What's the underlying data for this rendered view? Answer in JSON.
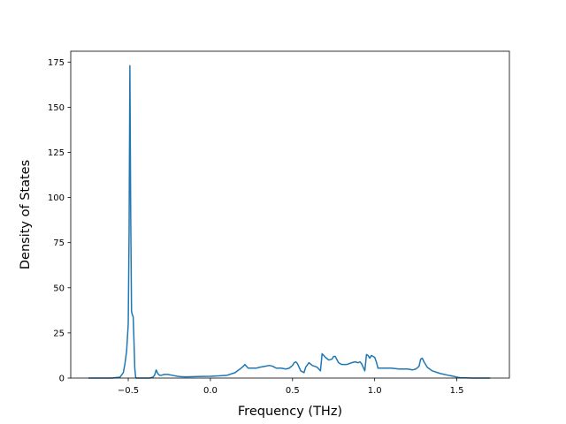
{
  "chart_data": {
    "type": "line",
    "title": "",
    "xlabel": "Frequency (THz)",
    "ylabel": "Density of States",
    "xlim": [
      -0.85,
      1.82
    ],
    "ylim": [
      0,
      181
    ],
    "x_ticks": [
      -0.5,
      0.0,
      0.5,
      1.0,
      1.5
    ],
    "x_tick_labels": [
      "−0.5",
      "0.0",
      "0.5",
      "1.0",
      "1.5"
    ],
    "y_ticks": [
      0,
      25,
      50,
      75,
      100,
      125,
      150,
      175
    ],
    "y_tick_labels": [
      "0",
      "25",
      "50",
      "75",
      "100",
      "125",
      "150",
      "175"
    ],
    "grid": false,
    "legend": "none",
    "series": [
      {
        "color": "#1f77b4",
        "x": [
          -0.74,
          -0.6,
          -0.55,
          -0.53,
          -0.52,
          -0.51,
          -0.5,
          -0.495,
          -0.49,
          -0.485,
          -0.48,
          -0.475,
          -0.47,
          -0.465,
          -0.46,
          -0.455,
          -0.45,
          -0.445,
          -0.44,
          -0.43,
          -0.4,
          -0.37,
          -0.35,
          -0.34,
          -0.33,
          -0.32,
          -0.31,
          -0.3,
          -0.28,
          -0.26,
          -0.23,
          -0.2,
          -0.18,
          -0.15,
          -0.1,
          -0.05,
          0.0,
          0.05,
          0.1,
          0.15,
          0.18,
          0.2,
          0.21,
          0.22,
          0.23,
          0.25,
          0.28,
          0.3,
          0.33,
          0.36,
          0.38,
          0.4,
          0.43,
          0.46,
          0.48,
          0.5,
          0.51,
          0.52,
          0.53,
          0.55,
          0.57,
          0.58,
          0.6,
          0.62,
          0.65,
          0.66,
          0.67,
          0.68,
          0.7,
          0.72,
          0.74,
          0.75,
          0.76,
          0.78,
          0.8,
          0.83,
          0.86,
          0.88,
          0.9,
          0.91,
          0.92,
          0.93,
          0.94,
          0.95,
          0.96,
          0.97,
          0.98,
          0.99,
          1.0,
          1.01,
          1.02,
          1.05,
          1.1,
          1.15,
          1.18,
          1.2,
          1.23,
          1.25,
          1.27,
          1.28,
          1.29,
          1.3,
          1.32,
          1.35,
          1.4,
          1.45,
          1.48,
          1.5,
          1.52,
          1.6,
          1.7
        ],
        "y": [
          0,
          0,
          0.5,
          3,
          8,
          15,
          30,
          80,
          173,
          90,
          37,
          35,
          34,
          20,
          5,
          0.5,
          0,
          0,
          0,
          0,
          0,
          0,
          0.5,
          1.5,
          4.5,
          2.5,
          1.5,
          1.5,
          2,
          2,
          1.5,
          1,
          0.8,
          0.7,
          0.8,
          0.9,
          1,
          1.2,
          1.5,
          3,
          5,
          6.5,
          7.5,
          6.5,
          5.5,
          5.5,
          5.5,
          6,
          6.5,
          7,
          6.5,
          5.5,
          5.5,
          5,
          5.5,
          7,
          8.5,
          9,
          8,
          4,
          3,
          6,
          8.5,
          7,
          6,
          5,
          4,
          13.5,
          11.5,
          10,
          10.5,
          12,
          12,
          8.5,
          7.5,
          7.5,
          8.5,
          9,
          8.5,
          9,
          8,
          6,
          4,
          13,
          12.5,
          11,
          12.5,
          12,
          11.5,
          9,
          5.5,
          5.5,
          5.5,
          5,
          5,
          5,
          4.5,
          5,
          6.5,
          10.5,
          11,
          9,
          6,
          4,
          2.5,
          1.5,
          1,
          0.5,
          0.2,
          0,
          0
        ]
      }
    ]
  }
}
